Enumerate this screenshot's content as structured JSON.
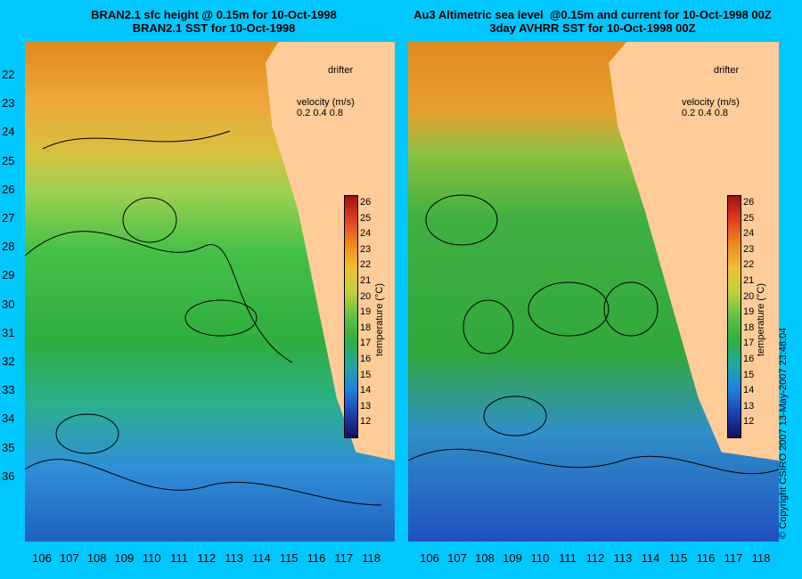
{
  "left": {
    "title_line1": "BRAN2.1 sfc height @ 0.15m for 10-Oct-1998",
    "title_line2": "BRAN2.1 SST for 10-Oct-1998"
  },
  "right": {
    "title_line1": "Au3 Altimetric sea level  @0.15m and current for 10-Oct-1998 00Z",
    "title_line2": "3day AVHRR SST for 10-Oct-1998 00Z"
  },
  "legend": {
    "drifter": "drifter",
    "velocity": "velocity (m/s)",
    "velocity_scale": "0.2 0.4 0.8"
  },
  "axes": {
    "lat_ticks": [
      "22",
      "23",
      "24",
      "25",
      "26",
      "27",
      "28",
      "29",
      "30",
      "31",
      "32",
      "33",
      "34",
      "35",
      "36"
    ],
    "lon_ticks": [
      "106",
      "107",
      "108",
      "109",
      "110",
      "111",
      "112",
      "113",
      "114",
      "115",
      "116",
      "117",
      "118"
    ]
  },
  "colorbar": {
    "ticks": [
      "26",
      "25",
      "24",
      "23",
      "22",
      "21",
      "20",
      "19",
      "18",
      "17",
      "16",
      "15",
      "14",
      "13",
      "12"
    ],
    "title": "temperature (°C)",
    "range": [
      11,
      26.5
    ]
  },
  "copyright": "© Copyright CSIRO 2007  13-May-2007 23:48:04",
  "colors": {
    "background": "#00c8ff",
    "land": "#ffcc99",
    "drifter": "#ff33ff",
    "ocean_warm": "#e89a2a",
    "ocean_mid": "#2fb33a",
    "ocean_cool": "#2a8fd6"
  }
}
